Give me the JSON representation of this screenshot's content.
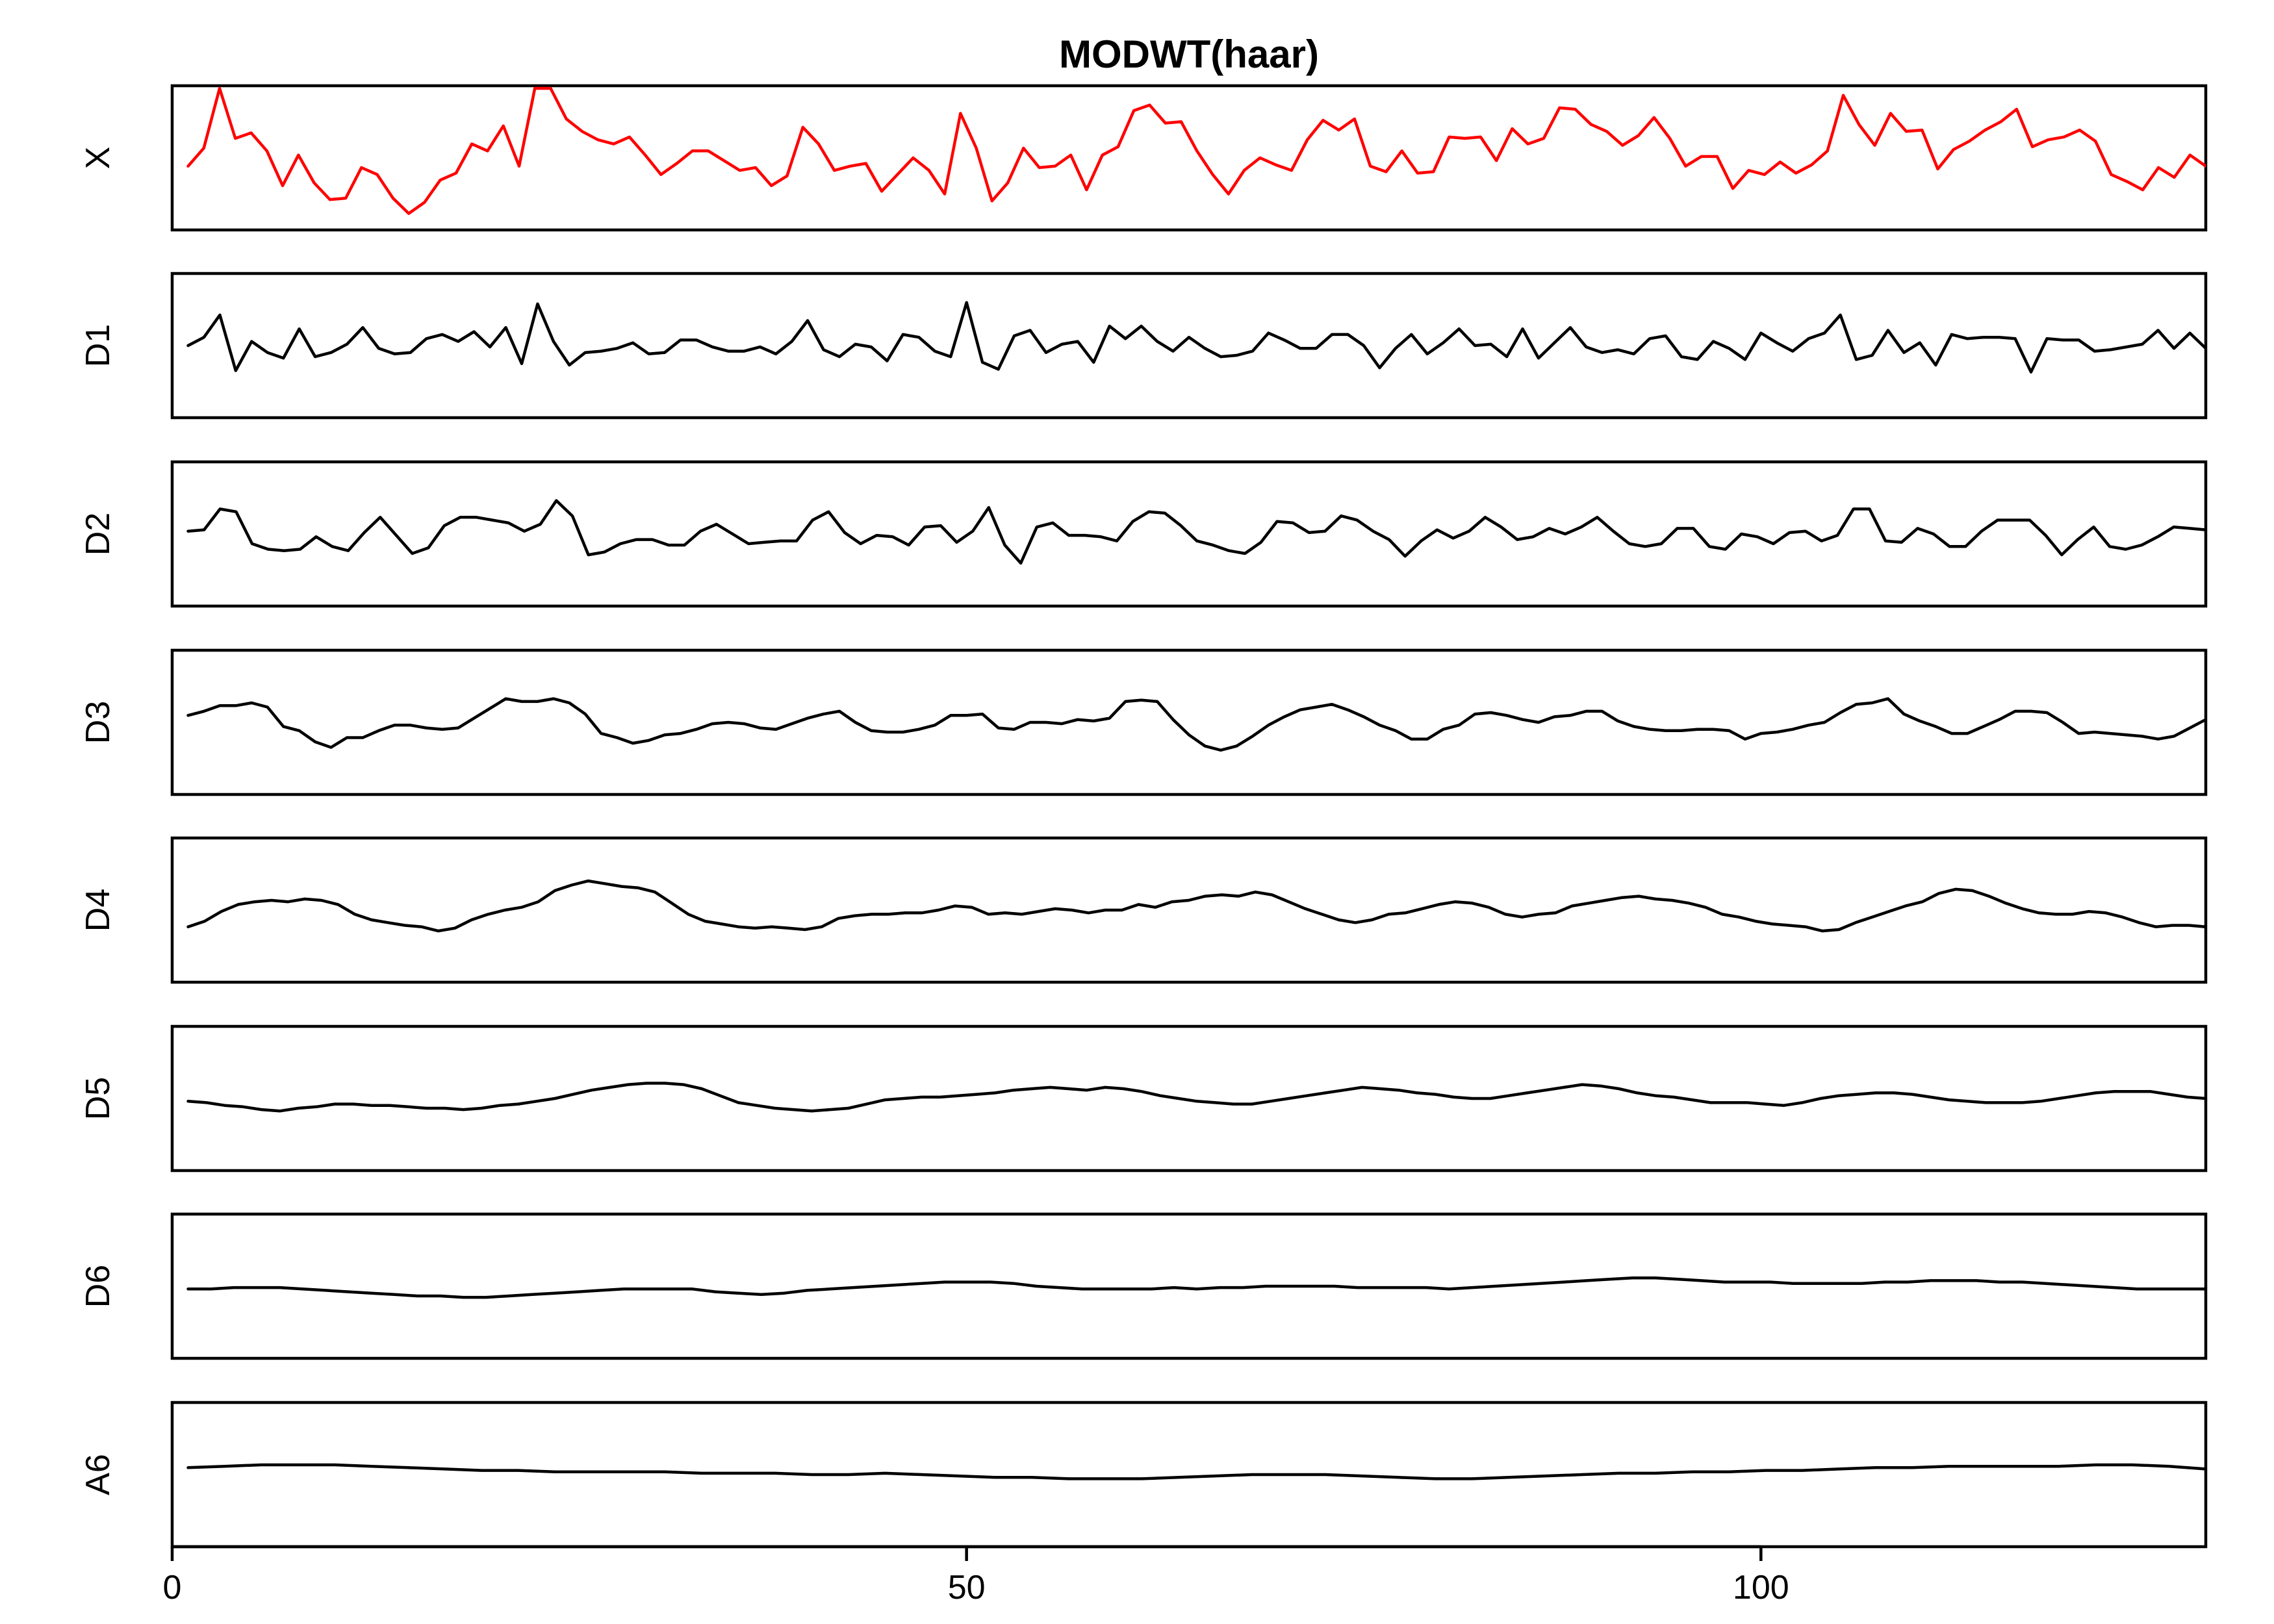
{
  "chart_data": {
    "type": "line",
    "title": "MODWT(haar)",
    "x_axis": {
      "range": [
        0,
        128
      ],
      "ticks": [
        0,
        50,
        100
      ],
      "tick_labels": [
        "0",
        "50",
        "100"
      ]
    },
    "colors": {
      "X": "#ff0000",
      "default": "#000000"
    },
    "series": [
      {
        "name": "X",
        "ylim": [
          0,
          1
        ],
        "values": [
          0.44,
          0.57,
          1.0,
          0.64,
          0.68,
          0.55,
          0.3,
          0.52,
          0.32,
          0.2,
          0.21,
          0.43,
          0.38,
          0.21,
          0.1,
          0.18,
          0.34,
          0.39,
          0.6,
          0.55,
          0.73,
          0.44,
          1.0,
          1.0,
          0.78,
          0.69,
          0.63,
          0.6,
          0.65,
          0.52,
          0.38,
          0.46,
          0.55,
          0.55,
          0.48,
          0.41,
          0.43,
          0.3,
          0.37,
          0.72,
          0.6,
          0.41,
          0.44,
          0.46,
          0.26,
          0.38,
          0.5,
          0.41,
          0.24,
          0.82,
          0.57,
          0.19,
          0.32,
          0.57,
          0.43,
          0.44,
          0.52,
          0.27,
          0.52,
          0.58,
          0.84,
          0.88,
          0.75,
          0.76,
          0.55,
          0.38,
          0.24,
          0.41,
          0.5,
          0.45,
          0.41,
          0.63,
          0.77,
          0.7,
          0.78,
          0.44,
          0.4,
          0.55,
          0.39,
          0.4,
          0.65,
          0.64,
          0.65,
          0.48,
          0.71,
          0.6,
          0.64,
          0.86,
          0.85,
          0.74,
          0.69,
          0.59,
          0.66,
          0.79,
          0.64,
          0.44,
          0.51,
          0.51,
          0.28,
          0.41,
          0.38,
          0.47,
          0.39,
          0.45,
          0.55,
          0.95,
          0.74,
          0.59,
          0.82,
          0.69,
          0.7,
          0.42,
          0.56,
          0.62,
          0.7,
          0.76,
          0.85,
          0.58,
          0.63,
          0.65,
          0.7,
          0.62,
          0.38,
          0.33,
          0.27,
          0.43,
          0.36,
          0.52,
          0.44
        ]
      },
      {
        "name": "D1",
        "ylim": [
          0,
          1
        ],
        "values": [
          0.5,
          0.56,
          0.72,
          0.32,
          0.53,
          0.45,
          0.41,
          0.62,
          0.42,
          0.45,
          0.51,
          0.63,
          0.48,
          0.44,
          0.45,
          0.55,
          0.58,
          0.53,
          0.6,
          0.49,
          0.63,
          0.37,
          0.8,
          0.53,
          0.36,
          0.45,
          0.46,
          0.48,
          0.52,
          0.44,
          0.45,
          0.54,
          0.54,
          0.49,
          0.46,
          0.46,
          0.49,
          0.44,
          0.53,
          0.68,
          0.47,
          0.42,
          0.51,
          0.49,
          0.39,
          0.58,
          0.56,
          0.46,
          0.42,
          0.81,
          0.38,
          0.33,
          0.57,
          0.61,
          0.45,
          0.51,
          0.53,
          0.38,
          0.64,
          0.55,
          0.64,
          0.53,
          0.46,
          0.56,
          0.48,
          0.42,
          0.43,
          0.46,
          0.59,
          0.54,
          0.48,
          0.48,
          0.58,
          0.58,
          0.5,
          0.34,
          0.48,
          0.58,
          0.44,
          0.52,
          0.62,
          0.5,
          0.51,
          0.42,
          0.62,
          0.41,
          0.52,
          0.63,
          0.49,
          0.45,
          0.47,
          0.44,
          0.55,
          0.57,
          0.42,
          0.4,
          0.53,
          0.48,
          0.4,
          0.59,
          0.52,
          0.46,
          0.55,
          0.59,
          0.72,
          0.4,
          0.43,
          0.61,
          0.45,
          0.52,
          0.36,
          0.58,
          0.55,
          0.56,
          0.56,
          0.55,
          0.31,
          0.55,
          0.54,
          0.54,
          0.46,
          0.47,
          0.49,
          0.51,
          0.61,
          0.48,
          0.59,
          0.48
        ]
      },
      {
        "name": "D2",
        "ylim": [
          0,
          1
        ],
        "values": [
          0.52,
          0.53,
          0.68,
          0.66,
          0.43,
          0.39,
          0.38,
          0.39,
          0.48,
          0.41,
          0.38,
          0.51,
          0.62,
          0.49,
          0.36,
          0.4,
          0.56,
          0.62,
          0.62,
          0.6,
          0.58,
          0.52,
          0.57,
          0.74,
          0.63,
          0.35,
          0.37,
          0.43,
          0.46,
          0.46,
          0.42,
          0.42,
          0.52,
          0.57,
          0.5,
          0.43,
          0.44,
          0.45,
          0.45,
          0.6,
          0.66,
          0.51,
          0.43,
          0.49,
          0.48,
          0.42,
          0.55,
          0.56,
          0.44,
          0.52,
          0.69,
          0.42,
          0.29,
          0.55,
          0.58,
          0.49,
          0.49,
          0.48,
          0.45,
          0.59,
          0.66,
          0.65,
          0.56,
          0.45,
          0.42,
          0.38,
          0.36,
          0.44,
          0.59,
          0.58,
          0.51,
          0.52,
          0.63,
          0.6,
          0.52,
          0.46,
          0.34,
          0.45,
          0.53,
          0.47,
          0.52,
          0.62,
          0.55,
          0.46,
          0.48,
          0.54,
          0.5,
          0.55,
          0.62,
          0.52,
          0.43,
          0.41,
          0.43,
          0.54,
          0.54,
          0.41,
          0.39,
          0.5,
          0.48,
          0.43,
          0.51,
          0.52,
          0.45,
          0.49,
          0.68,
          0.68,
          0.45,
          0.44,
          0.54,
          0.5,
          0.41,
          0.41,
          0.52,
          0.6,
          0.6,
          0.6,
          0.49,
          0.35,
          0.46,
          0.55,
          0.41,
          0.39,
          0.42,
          0.48,
          0.55,
          0.54,
          0.53
        ]
      },
      {
        "name": "D3",
        "ylim": [
          0,
          1
        ],
        "values": [
          0.55,
          0.58,
          0.62,
          0.62,
          0.64,
          0.61,
          0.47,
          0.44,
          0.36,
          0.32,
          0.39,
          0.39,
          0.44,
          0.48,
          0.48,
          0.46,
          0.45,
          0.46,
          0.53,
          0.6,
          0.67,
          0.65,
          0.65,
          0.67,
          0.64,
          0.56,
          0.42,
          0.39,
          0.35,
          0.37,
          0.41,
          0.42,
          0.45,
          0.49,
          0.5,
          0.49,
          0.46,
          0.45,
          0.49,
          0.53,
          0.56,
          0.58,
          0.5,
          0.44,
          0.43,
          0.43,
          0.45,
          0.48,
          0.55,
          0.55,
          0.56,
          0.46,
          0.45,
          0.5,
          0.5,
          0.49,
          0.52,
          0.51,
          0.53,
          0.65,
          0.66,
          0.65,
          0.52,
          0.41,
          0.33,
          0.3,
          0.33,
          0.4,
          0.48,
          0.54,
          0.59,
          0.61,
          0.63,
          0.59,
          0.54,
          0.48,
          0.44,
          0.38,
          0.38,
          0.45,
          0.48,
          0.56,
          0.57,
          0.55,
          0.52,
          0.5,
          0.54,
          0.55,
          0.58,
          0.58,
          0.51,
          0.47,
          0.45,
          0.44,
          0.44,
          0.45,
          0.45,
          0.44,
          0.38,
          0.42,
          0.43,
          0.45,
          0.48,
          0.5,
          0.57,
          0.63,
          0.64,
          0.67,
          0.56,
          0.51,
          0.47,
          0.42,
          0.42,
          0.47,
          0.52,
          0.58,
          0.58,
          0.57,
          0.5,
          0.42,
          0.43,
          0.42,
          0.41,
          0.4,
          0.38,
          0.4,
          0.46,
          0.52
        ]
      },
      {
        "name": "D4",
        "ylim": [
          0,
          1
        ],
        "values": [
          0.38,
          0.42,
          0.49,
          0.54,
          0.56,
          0.57,
          0.56,
          0.58,
          0.57,
          0.54,
          0.47,
          0.43,
          0.41,
          0.39,
          0.38,
          0.35,
          0.37,
          0.43,
          0.47,
          0.5,
          0.52,
          0.56,
          0.64,
          0.68,
          0.71,
          0.69,
          0.67,
          0.66,
          0.63,
          0.55,
          0.47,
          0.42,
          0.4,
          0.38,
          0.37,
          0.38,
          0.37,
          0.36,
          0.38,
          0.44,
          0.46,
          0.47,
          0.47,
          0.48,
          0.48,
          0.5,
          0.53,
          0.52,
          0.47,
          0.48,
          0.47,
          0.49,
          0.51,
          0.5,
          0.48,
          0.5,
          0.5,
          0.54,
          0.52,
          0.56,
          0.57,
          0.6,
          0.61,
          0.6,
          0.63,
          0.61,
          0.56,
          0.51,
          0.47,
          0.43,
          0.41,
          0.43,
          0.47,
          0.48,
          0.51,
          0.54,
          0.56,
          0.55,
          0.52,
          0.47,
          0.45,
          0.47,
          0.48,
          0.53,
          0.55,
          0.57,
          0.59,
          0.6,
          0.58,
          0.57,
          0.55,
          0.52,
          0.47,
          0.45,
          0.42,
          0.4,
          0.39,
          0.38,
          0.35,
          0.36,
          0.41,
          0.45,
          0.49,
          0.53,
          0.56,
          0.62,
          0.65,
          0.64,
          0.6,
          0.55,
          0.51,
          0.48,
          0.47,
          0.47,
          0.49,
          0.48,
          0.45,
          0.41,
          0.38,
          0.39,
          0.39,
          0.38
        ]
      },
      {
        "name": "D5",
        "ylim": [
          0,
          1
        ],
        "values": [
          0.48,
          0.47,
          0.45,
          0.44,
          0.42,
          0.41,
          0.43,
          0.44,
          0.46,
          0.46,
          0.45,
          0.45,
          0.44,
          0.43,
          0.43,
          0.42,
          0.43,
          0.45,
          0.46,
          0.48,
          0.5,
          0.53,
          0.56,
          0.58,
          0.6,
          0.61,
          0.61,
          0.6,
          0.57,
          0.52,
          0.47,
          0.45,
          0.43,
          0.42,
          0.41,
          0.42,
          0.43,
          0.46,
          0.49,
          0.5,
          0.51,
          0.51,
          0.52,
          0.53,
          0.54,
          0.56,
          0.57,
          0.58,
          0.57,
          0.56,
          0.58,
          0.57,
          0.55,
          0.52,
          0.5,
          0.48,
          0.47,
          0.46,
          0.46,
          0.48,
          0.5,
          0.52,
          0.54,
          0.56,
          0.58,
          0.57,
          0.56,
          0.54,
          0.53,
          0.51,
          0.5,
          0.5,
          0.52,
          0.54,
          0.56,
          0.58,
          0.6,
          0.59,
          0.57,
          0.54,
          0.52,
          0.51,
          0.49,
          0.47,
          0.47,
          0.47,
          0.46,
          0.45,
          0.47,
          0.5,
          0.52,
          0.53,
          0.54,
          0.54,
          0.53,
          0.51,
          0.49,
          0.48,
          0.47,
          0.47,
          0.47,
          0.48,
          0.5,
          0.52,
          0.54,
          0.55,
          0.55,
          0.55,
          0.53,
          0.51,
          0.5
        ]
      },
      {
        "name": "D6",
        "ylim": [
          0,
          1
        ],
        "values": [
          0.48,
          0.48,
          0.49,
          0.49,
          0.49,
          0.48,
          0.47,
          0.46,
          0.45,
          0.44,
          0.43,
          0.43,
          0.42,
          0.42,
          0.43,
          0.44,
          0.45,
          0.46,
          0.47,
          0.48,
          0.48,
          0.48,
          0.48,
          0.46,
          0.45,
          0.44,
          0.45,
          0.47,
          0.48,
          0.49,
          0.5,
          0.51,
          0.52,
          0.53,
          0.53,
          0.53,
          0.52,
          0.5,
          0.49,
          0.48,
          0.48,
          0.48,
          0.48,
          0.49,
          0.48,
          0.49,
          0.49,
          0.5,
          0.5,
          0.5,
          0.5,
          0.49,
          0.49,
          0.49,
          0.49,
          0.48,
          0.49,
          0.5,
          0.51,
          0.52,
          0.53,
          0.54,
          0.55,
          0.56,
          0.56,
          0.55,
          0.54,
          0.53,
          0.53,
          0.53,
          0.52,
          0.52,
          0.52,
          0.52,
          0.53,
          0.53,
          0.54,
          0.54,
          0.54,
          0.53,
          0.53,
          0.52,
          0.51,
          0.5,
          0.49,
          0.48,
          0.48,
          0.48,
          0.48
        ]
      },
      {
        "name": "A6",
        "ylim": [
          0,
          1
        ],
        "values": [
          0.55,
          0.56,
          0.57,
          0.57,
          0.57,
          0.56,
          0.55,
          0.54,
          0.53,
          0.53,
          0.52,
          0.52,
          0.52,
          0.52,
          0.51,
          0.51,
          0.51,
          0.5,
          0.5,
          0.51,
          0.5,
          0.49,
          0.48,
          0.48,
          0.47,
          0.47,
          0.47,
          0.48,
          0.49,
          0.5,
          0.5,
          0.5,
          0.49,
          0.48,
          0.47,
          0.47,
          0.48,
          0.49,
          0.5,
          0.51,
          0.51,
          0.52,
          0.52,
          0.53,
          0.53,
          0.54,
          0.55,
          0.55,
          0.56,
          0.56,
          0.56,
          0.56,
          0.57,
          0.57,
          0.56,
          0.54
        ]
      }
    ]
  }
}
